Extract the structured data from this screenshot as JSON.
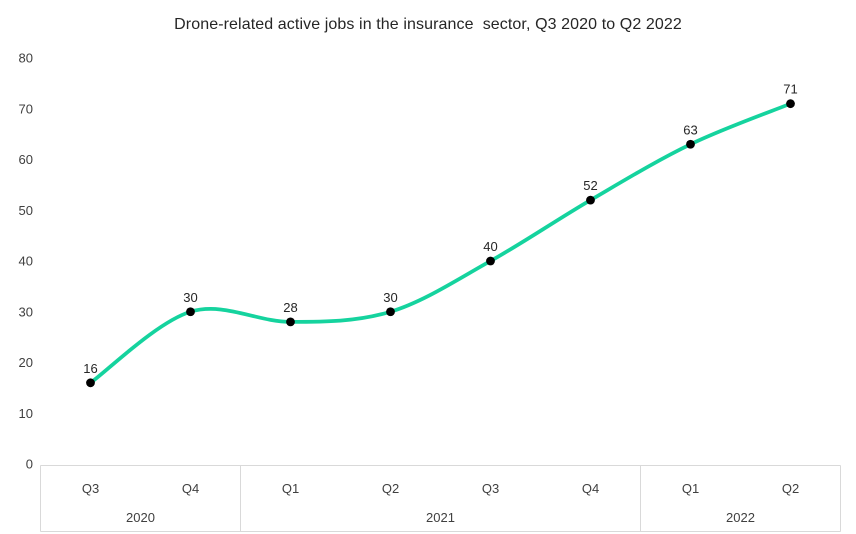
{
  "chart_data": {
    "type": "line",
    "title": "Drone-related active jobs in the insurance  sector, Q3 2020 to Q2 2022",
    "categories": [
      "Q3",
      "Q4",
      "Q1",
      "Q2",
      "Q3",
      "Q4",
      "Q1",
      "Q2"
    ],
    "year_groups": [
      {
        "label": "2020",
        "count": 2
      },
      {
        "label": "2021",
        "count": 4
      },
      {
        "label": "2022",
        "count": 2
      }
    ],
    "series": [
      {
        "name": "Drone-related active jobs",
        "values": [
          16,
          30,
          28,
          30,
          40,
          52,
          63,
          71
        ]
      }
    ],
    "yticks": [
      0,
      10,
      20,
      30,
      40,
      50,
      60,
      70,
      80
    ],
    "ylim": [
      0,
      80
    ],
    "grid": false,
    "legend": "none",
    "smooth": true,
    "data_labels": true,
    "colors": {
      "line": "#15D39E",
      "marker": "#000000",
      "axis_line": "#D9D9D9",
      "axis_label": "#404040",
      "data_label": "#262626",
      "title": "#262626"
    }
  }
}
